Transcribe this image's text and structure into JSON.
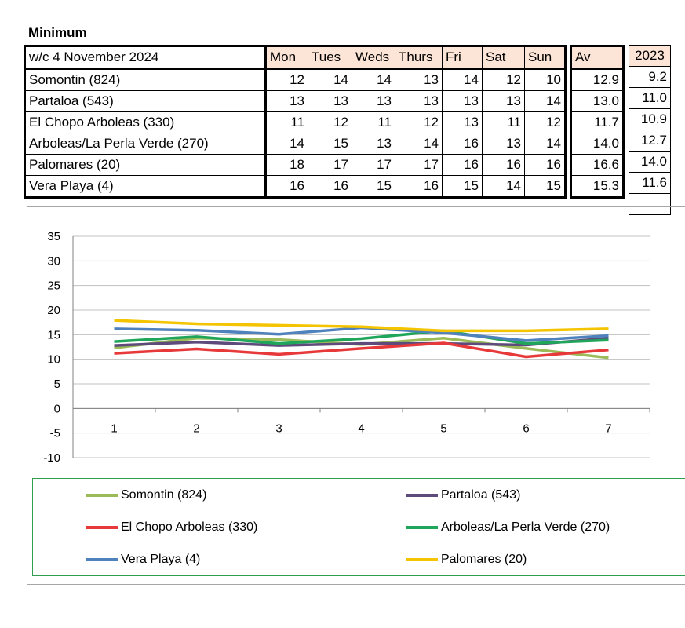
{
  "title": "Minimum",
  "table": {
    "week_label": "w/c 4 November 2024",
    "days": [
      "Mon",
      "Tues",
      "Weds",
      "Thurs",
      "Fri",
      "Sat",
      "Sun"
    ],
    "av_header": "Av",
    "year_header": "2023",
    "rows": [
      {
        "name": "Somontin (824)",
        "values": [
          "12",
          "14",
          "14",
          "13",
          "14",
          "12",
          "10"
        ],
        "av": "12.9",
        "prev": "9.2"
      },
      {
        "name": "Partaloa (543)",
        "values": [
          "13",
          "13",
          "13",
          "13",
          "13",
          "13",
          "14"
        ],
        "av": "13.0",
        "prev": "11.0"
      },
      {
        "name": "El Chopo Arboleas (330)",
        "values": [
          "11",
          "12",
          "11",
          "12",
          "13",
          "11",
          "12"
        ],
        "av": "11.7",
        "prev": "10.9"
      },
      {
        "name": "Arboleas/La Perla Verde (270)",
        "values": [
          "14",
          "15",
          "13",
          "14",
          "16",
          "13",
          "14"
        ],
        "av": "14.0",
        "prev": "12.7"
      },
      {
        "name": "Palomares (20)",
        "values": [
          "18",
          "17",
          "17",
          "17",
          "16",
          "16",
          "16"
        ],
        "av": "16.6",
        "prev": "14.0"
      },
      {
        "name": "Vera Playa (4)",
        "values": [
          "16",
          "16",
          "15",
          "16",
          "15",
          "14",
          "15"
        ],
        "av": "15.3",
        "prev": "11.6"
      }
    ]
  },
  "chart_data": {
    "type": "line",
    "x": [
      1,
      2,
      3,
      4,
      5,
      6,
      7
    ],
    "xticks": [
      "1",
      "2",
      "3",
      "4",
      "5",
      "6",
      "7"
    ],
    "yticks": [
      "35",
      "30",
      "25",
      "20",
      "15",
      "10",
      "5",
      "0",
      "-5",
      "-10"
    ],
    "ylim": [
      -10,
      35
    ],
    "grid": true,
    "legend": "bottom",
    "series": [
      {
        "name": "Somontin (824)",
        "color": "#9bbb59",
        "values": [
          12.3,
          14.3,
          14.0,
          13.0,
          14.3,
          12.2,
          10.3
        ]
      },
      {
        "name": "Partaloa (543)",
        "color": "#5e4b7c",
        "values": [
          12.8,
          13.5,
          12.8,
          13.2,
          13.2,
          12.9,
          14.3
        ]
      },
      {
        "name": "El Chopo Arboleas (330)",
        "color": "#e8393a",
        "values": [
          11.2,
          12.1,
          11.0,
          12.2,
          13.3,
          10.5,
          11.9
        ]
      },
      {
        "name": "Arboleas/La Perla Verde (270)",
        "color": "#1fa65a",
        "values": [
          13.6,
          14.6,
          13.2,
          14.2,
          15.8,
          13.2,
          13.9
        ]
      },
      {
        "name": "Vera Playa (4)",
        "color": "#4f81bd",
        "values": [
          16.2,
          15.9,
          15.1,
          16.4,
          15.4,
          13.8,
          14.8
        ]
      },
      {
        "name": "Palomares (20)",
        "color": "#f5c400",
        "values": [
          17.9,
          17.2,
          16.9,
          16.6,
          15.8,
          15.8,
          16.2
        ]
      }
    ]
  }
}
